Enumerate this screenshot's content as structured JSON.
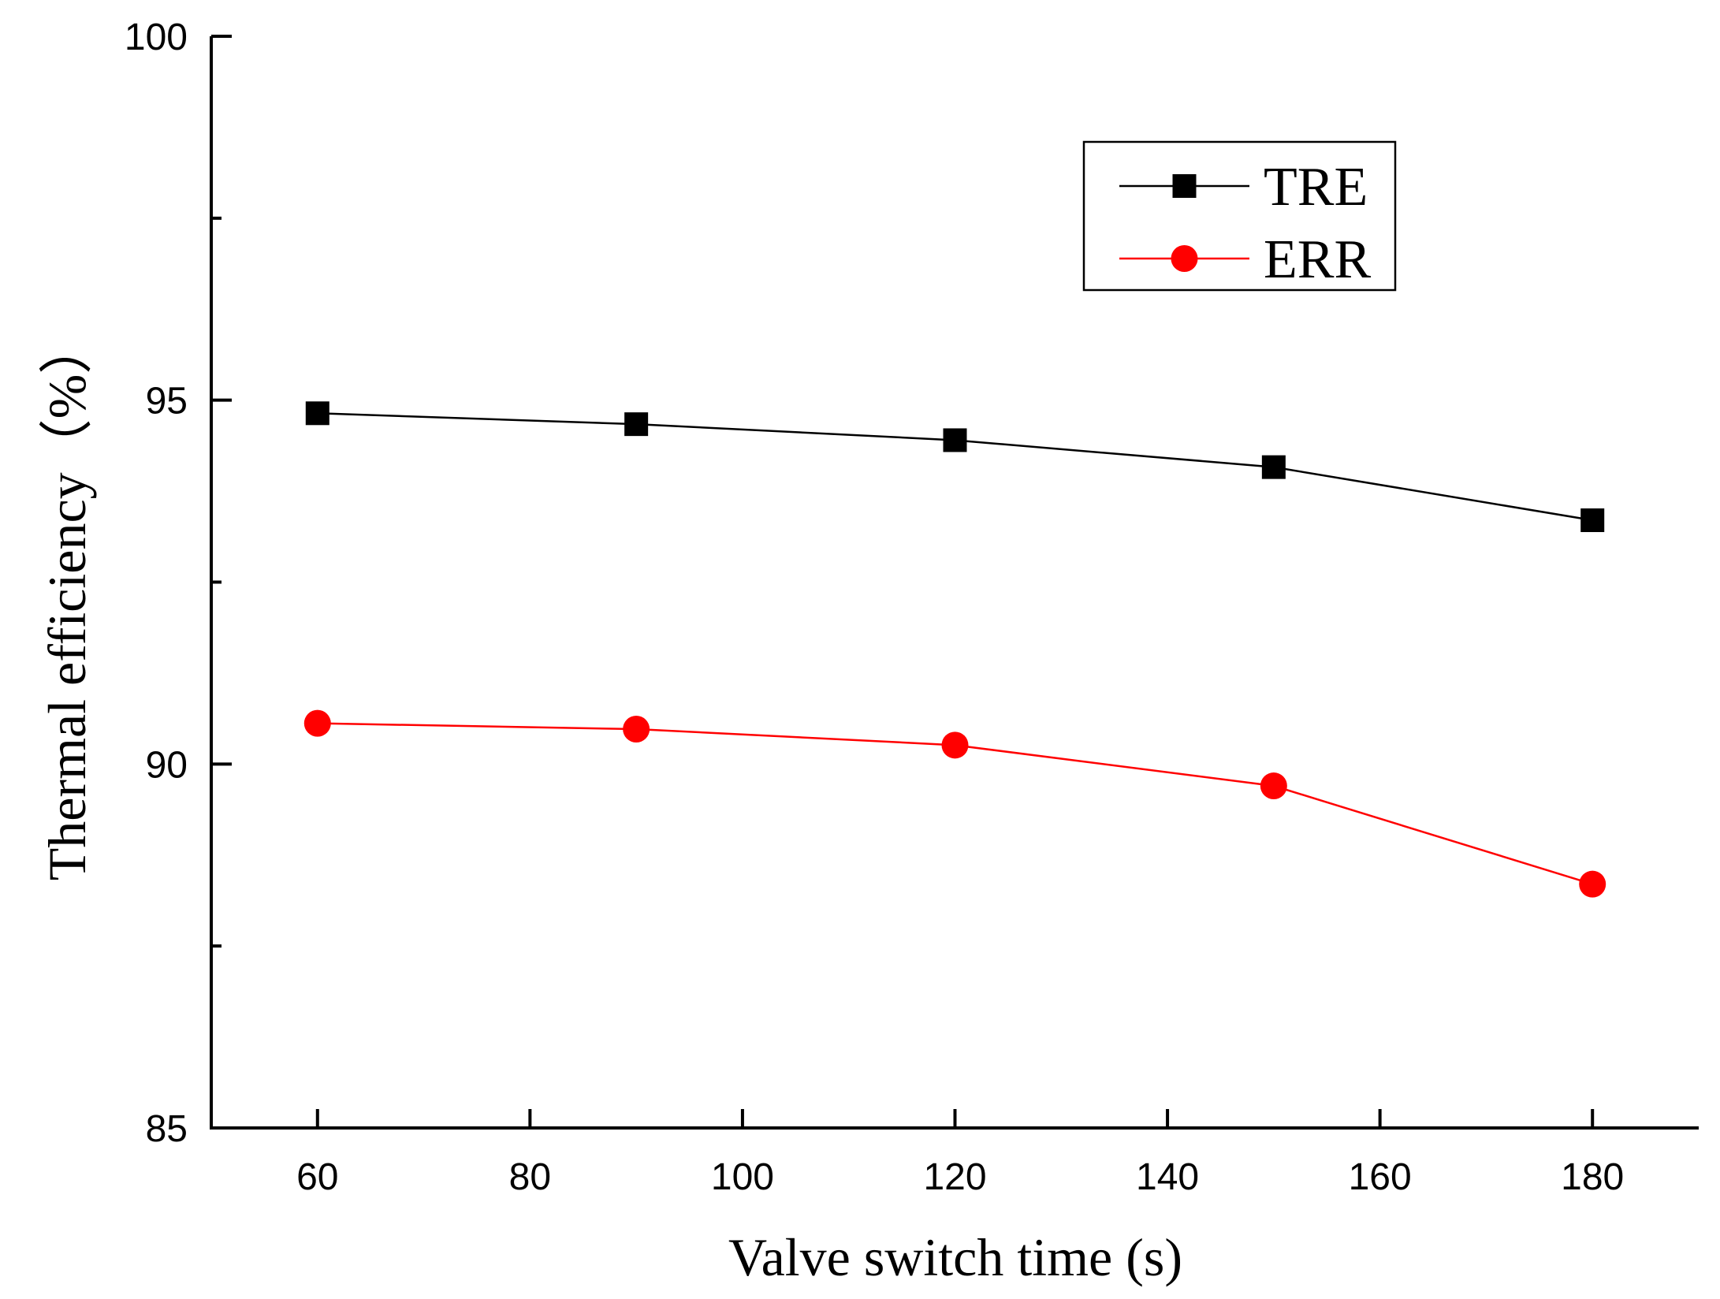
{
  "chart_data": {
    "type": "line",
    "title": "",
    "xlabel": "Valve switch time (s)",
    "ylabel": "Thermal efficiency（%）",
    "xlim": [
      50,
      190
    ],
    "ylim": [
      85,
      100
    ],
    "xticks": [
      60,
      80,
      100,
      120,
      140,
      160,
      180
    ],
    "xtick_labels": [
      "60",
      "80",
      "100",
      "120",
      "140",
      "160",
      "180"
    ],
    "yticks": [
      85,
      90,
      95,
      100
    ],
    "ytick_labels": [
      "85",
      "90",
      "95",
      "100"
    ],
    "grid": false,
    "legend_position": "top-right",
    "x": [
      60,
      90,
      120,
      150,
      180
    ],
    "series": [
      {
        "name": "TRE",
        "color": "#000000",
        "marker": "square",
        "values": [
          94.82,
          94.67,
          94.45,
          94.08,
          93.35
        ]
      },
      {
        "name": "ERR",
        "color": "#ff0000",
        "marker": "circle",
        "values": [
          90.56,
          90.48,
          90.26,
          89.7,
          88.35
        ]
      }
    ]
  }
}
